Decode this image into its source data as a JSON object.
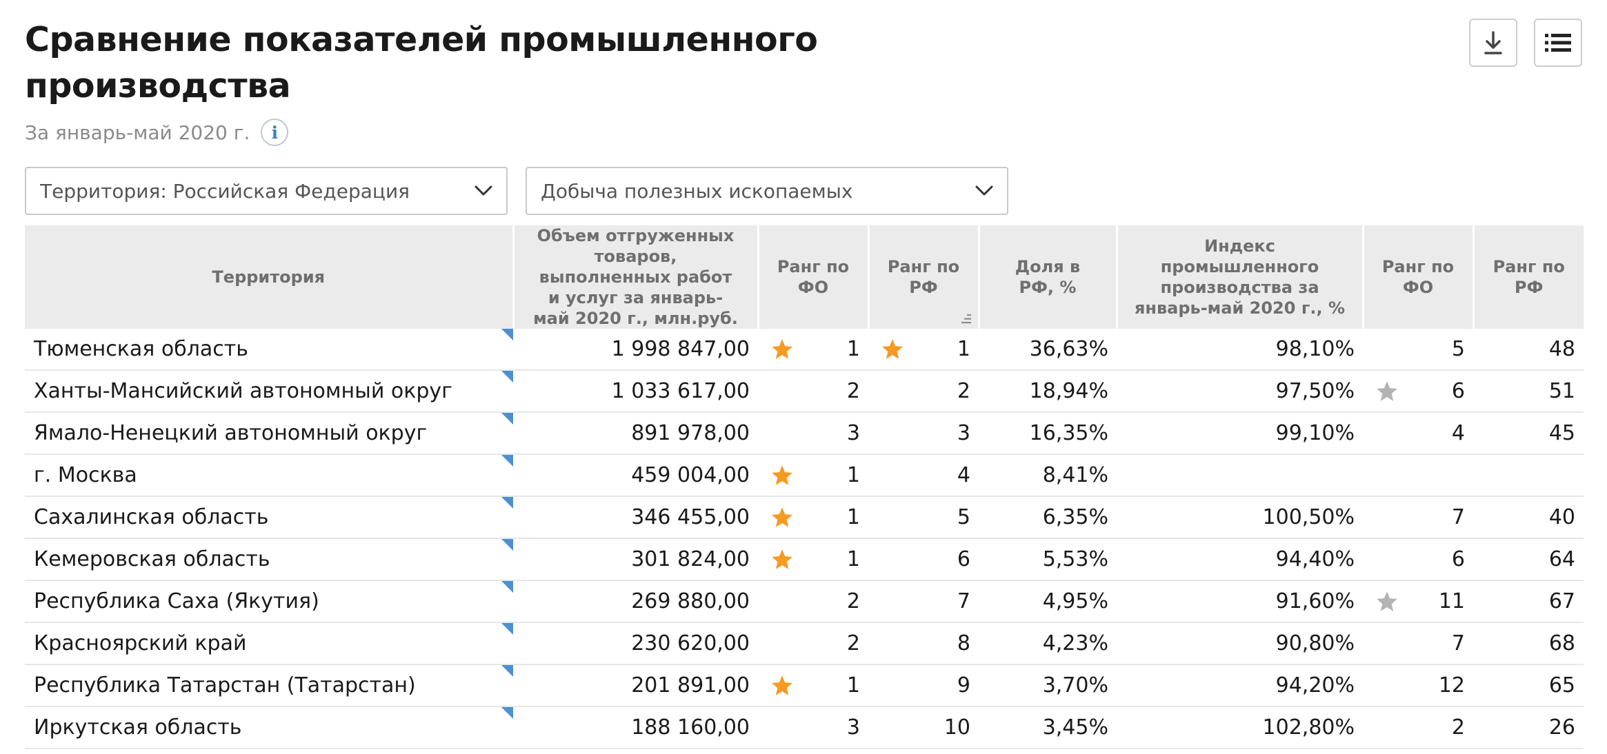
{
  "header": {
    "title": "Сравнение показателей промышленного производства",
    "subtitle": "За январь-май 2020 г.",
    "info_symbol": "i"
  },
  "filters": {
    "territory": "Территория: Российская  Федерация",
    "indicator": "Добыча полезных ископаемых"
  },
  "colors": {
    "star_gold": "#f59a23",
    "star_gray": "#b3b3b3",
    "corner_blue": "#4d90cd"
  },
  "table": {
    "columns": [
      "Территория",
      "Объем отгруженных товаров, выполненных работ и услуг за январь-май 2020 г., млн.руб.",
      "Ранг по ФО",
      "Ранг по РФ",
      "Доля в РФ, %",
      "Индекс промышленного производства за январь-май 2020 г., %",
      "Ранг по ФО",
      "Ранг по РФ"
    ],
    "rows": [
      {
        "name": "Тюменская область",
        "volume": "1 998 847,00",
        "fo_rank": "1",
        "fo_star": "gold",
        "rf_rank": "1",
        "rf_star": "gold",
        "share": "36,63%",
        "index": "98,10%",
        "idx_fo_rank": "5",
        "idx_fo_star": "",
        "idx_rf_rank": "48"
      },
      {
        "name": "Ханты-Мансийский автономный округ",
        "volume": "1 033 617,00",
        "fo_rank": "2",
        "fo_star": "",
        "rf_rank": "2",
        "rf_star": "",
        "share": "18,94%",
        "index": "97,50%",
        "idx_fo_rank": "6",
        "idx_fo_star": "gray",
        "idx_rf_rank": "51"
      },
      {
        "name": "Ямало-Ненецкий автономный округ",
        "volume": "891 978,00",
        "fo_rank": "3",
        "fo_star": "",
        "rf_rank": "3",
        "rf_star": "",
        "share": "16,35%",
        "index": "99,10%",
        "idx_fo_rank": "4",
        "idx_fo_star": "",
        "idx_rf_rank": "45"
      },
      {
        "name": "г. Москва",
        "volume": "459 004,00",
        "fo_rank": "1",
        "fo_star": "gold",
        "rf_rank": "4",
        "rf_star": "",
        "share": "8,41%",
        "index": "",
        "idx_fo_rank": "",
        "idx_fo_star": "",
        "idx_rf_rank": ""
      },
      {
        "name": "Сахалинская область",
        "volume": "346 455,00",
        "fo_rank": "1",
        "fo_star": "gold",
        "rf_rank": "5",
        "rf_star": "",
        "share": "6,35%",
        "index": "100,50%",
        "idx_fo_rank": "7",
        "idx_fo_star": "",
        "idx_rf_rank": "40"
      },
      {
        "name": "Кемеровская область",
        "volume": "301 824,00",
        "fo_rank": "1",
        "fo_star": "gold",
        "rf_rank": "6",
        "rf_star": "",
        "share": "5,53%",
        "index": "94,40%",
        "idx_fo_rank": "6",
        "idx_fo_star": "",
        "idx_rf_rank": "64"
      },
      {
        "name": "Республика Саха (Якутия)",
        "volume": "269 880,00",
        "fo_rank": "2",
        "fo_star": "",
        "rf_rank": "7",
        "rf_star": "",
        "share": "4,95%",
        "index": "91,60%",
        "idx_fo_rank": "11",
        "idx_fo_star": "gray",
        "idx_rf_rank": "67"
      },
      {
        "name": "Красноярский край",
        "volume": "230 620,00",
        "fo_rank": "2",
        "fo_star": "",
        "rf_rank": "8",
        "rf_star": "",
        "share": "4,23%",
        "index": "90,80%",
        "idx_fo_rank": "7",
        "idx_fo_star": "",
        "idx_rf_rank": "68"
      },
      {
        "name": "Республика Татарстан (Татарстан)",
        "volume": "201 891,00",
        "fo_rank": "1",
        "fo_star": "gold",
        "rf_rank": "9",
        "rf_star": "",
        "share": "3,70%",
        "index": "94,20%",
        "idx_fo_rank": "12",
        "idx_fo_star": "",
        "idx_rf_rank": "65"
      },
      {
        "name": "Иркутская область",
        "volume": "188 160,00",
        "fo_rank": "3",
        "fo_star": "",
        "rf_rank": "10",
        "rf_star": "",
        "share": "3,45%",
        "index": "102,80%",
        "idx_fo_rank": "2",
        "idx_fo_star": "",
        "idx_rf_rank": "26"
      }
    ]
  }
}
